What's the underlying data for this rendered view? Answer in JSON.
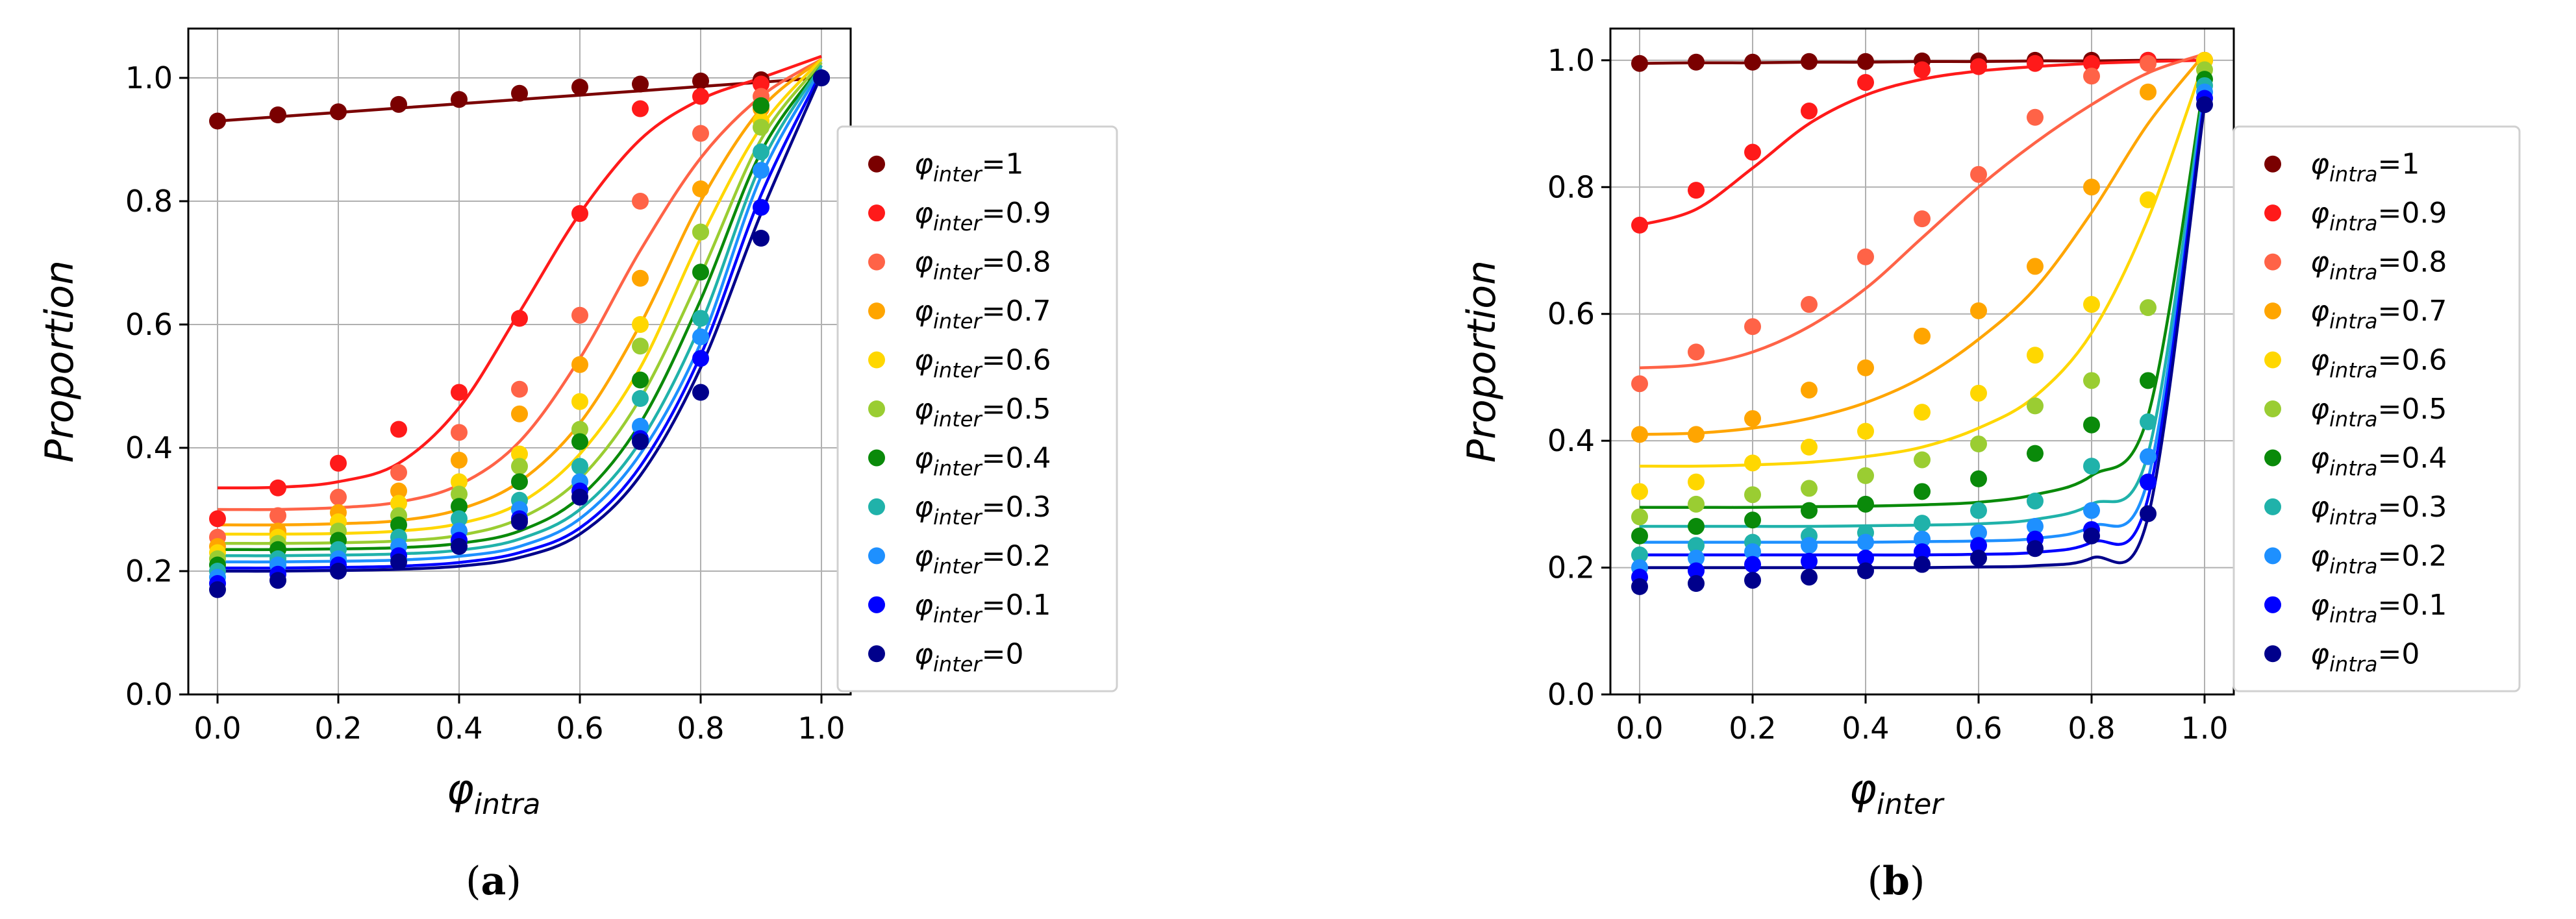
{
  "chart_data": [
    {
      "type": "scatter",
      "panel_label": "a",
      "ylabel": "Proportion",
      "xlabel": {
        "symbol": "φ",
        "subscript": "intra"
      },
      "legend_symbol": {
        "symbol": "φ",
        "subscript": "inter"
      },
      "xlim": [
        0,
        1
      ],
      "ylim": [
        0,
        1.08
      ],
      "xticks": [
        "0.0",
        "0.2",
        "0.4",
        "0.6",
        "0.8",
        "1.0"
      ],
      "yticks": [
        "0.0",
        "0.2",
        "0.4",
        "0.6",
        "0.8",
        "1.0"
      ],
      "grid": true,
      "legend_location": "right, outside axes",
      "x": [
        0,
        0.1,
        0.2,
        0.3,
        0.4,
        0.5,
        0.6,
        0.7,
        0.8,
        0.9,
        1.0
      ],
      "series": [
        {
          "name": "1",
          "color": "#7a0000",
          "points": [
            0.93,
            0.94,
            0.945,
            0.957,
            0.965,
            0.975,
            0.985,
            0.99,
            0.995,
            0.997,
            1.0
          ],
          "fit": [
            0.93,
            0.937,
            0.944,
            0.951,
            0.958,
            0.965,
            0.972,
            0.979,
            0.986,
            0.993,
            1.0
          ]
        },
        {
          "name": "0.9",
          "color": "#ff1a1a",
          "points": [
            0.285,
            0.335,
            0.375,
            0.43,
            0.49,
            0.61,
            0.78,
            0.95,
            0.97,
            0.99,
            1.0
          ],
          "fit": [
            0.335,
            0.336,
            0.345,
            0.375,
            0.465,
            0.62,
            0.78,
            0.9,
            0.965,
            1.0,
            1.035
          ]
        },
        {
          "name": "0.8",
          "color": "#ff6347",
          "points": [
            0.255,
            0.29,
            0.32,
            0.36,
            0.425,
            0.495,
            0.615,
            0.8,
            0.91,
            0.97,
            1.0
          ],
          "fit": [
            0.3,
            0.3,
            0.303,
            0.312,
            0.34,
            0.41,
            0.545,
            0.72,
            0.87,
            0.97,
            1.03
          ]
        },
        {
          "name": "0.7",
          "color": "#ffa500",
          "points": [
            0.24,
            0.265,
            0.295,
            0.33,
            0.38,
            0.455,
            0.535,
            0.675,
            0.82,
            0.95,
            1.0
          ],
          "fit": [
            0.275,
            0.275,
            0.277,
            0.282,
            0.3,
            0.345,
            0.44,
            0.6,
            0.8,
            0.95,
            1.03
          ]
        },
        {
          "name": "0.6",
          "color": "#ffd700",
          "points": [
            0.23,
            0.255,
            0.28,
            0.31,
            0.345,
            0.39,
            0.475,
            0.6,
            0.75,
            0.93,
            1.0
          ],
          "fit": [
            0.26,
            0.26,
            0.261,
            0.265,
            0.277,
            0.31,
            0.39,
            0.53,
            0.74,
            0.92,
            1.03
          ]
        },
        {
          "name": "0.5",
          "color": "#9acd32",
          "points": [
            0.22,
            0.245,
            0.265,
            0.29,
            0.325,
            0.37,
            0.43,
            0.565,
            0.75,
            0.92,
            1.0
          ],
          "fit": [
            0.245,
            0.245,
            0.246,
            0.249,
            0.258,
            0.285,
            0.35,
            0.48,
            0.68,
            0.9,
            1.025
          ]
        },
        {
          "name": "0.4",
          "color": "#0a8a0a",
          "points": [
            0.21,
            0.235,
            0.25,
            0.275,
            0.305,
            0.345,
            0.41,
            0.51,
            0.685,
            0.955,
            1.0
          ],
          "fit": [
            0.235,
            0.235,
            0.236,
            0.238,
            0.245,
            0.265,
            0.32,
            0.44,
            0.64,
            0.88,
            1.02
          ]
        },
        {
          "name": "0.3",
          "color": "#20b2aa",
          "points": [
            0.2,
            0.22,
            0.235,
            0.255,
            0.285,
            0.315,
            0.37,
            0.48,
            0.61,
            0.88,
            1.0
          ],
          "fit": [
            0.225,
            0.225,
            0.226,
            0.228,
            0.234,
            0.252,
            0.3,
            0.41,
            0.6,
            0.86,
            1.02
          ]
        },
        {
          "name": "0.2",
          "color": "#1e90ff",
          "points": [
            0.19,
            0.21,
            0.22,
            0.24,
            0.265,
            0.3,
            0.345,
            0.435,
            0.58,
            0.85,
            1.0
          ],
          "fit": [
            0.215,
            0.215,
            0.216,
            0.218,
            0.224,
            0.24,
            0.285,
            0.39,
            0.57,
            0.84,
            1.015
          ]
        },
        {
          "name": "0.1",
          "color": "#0000ff",
          "points": [
            0.18,
            0.195,
            0.21,
            0.225,
            0.25,
            0.285,
            0.33,
            0.415,
            0.545,
            0.79,
            1.0
          ],
          "fit": [
            0.205,
            0.205,
            0.206,
            0.208,
            0.214,
            0.23,
            0.27,
            0.37,
            0.55,
            0.81,
            1.01
          ]
        },
        {
          "name": "0",
          "color": "#00008b",
          "points": [
            0.17,
            0.185,
            0.2,
            0.215,
            0.24,
            0.28,
            0.32,
            0.41,
            0.49,
            0.74,
            1.0
          ],
          "fit": [
            0.2,
            0.2,
            0.201,
            0.203,
            0.208,
            0.222,
            0.26,
            0.355,
            0.53,
            0.78,
            1.005
          ]
        }
      ]
    },
    {
      "type": "scatter",
      "panel_label": "b",
      "ylabel": "Proportion",
      "xlabel": {
        "symbol": "φ",
        "subscript": "inter"
      },
      "legend_symbol": {
        "symbol": "φ",
        "subscript": "intra"
      },
      "xlim": [
        0,
        1
      ],
      "ylim": [
        0,
        1.05
      ],
      "xticks": [
        "0.0",
        "0.2",
        "0.4",
        "0.6",
        "0.8",
        "1.0"
      ],
      "yticks": [
        "0.0",
        "0.2",
        "0.4",
        "0.6",
        "0.8",
        "1.0"
      ],
      "grid": true,
      "legend_location": "right, outside axes",
      "x": [
        0,
        0.1,
        0.2,
        0.3,
        0.4,
        0.5,
        0.6,
        0.7,
        0.8,
        0.9,
        1.0
      ],
      "series": [
        {
          "name": "1",
          "color": "#7a0000",
          "points": [
            0.995,
            0.997,
            0.997,
            0.998,
            0.998,
            0.999,
            0.999,
            1.0,
            1.0,
            1.0,
            1.0
          ],
          "fit": [
            0.995,
            0.996,
            0.996,
            0.997,
            0.997,
            0.998,
            0.998,
            0.999,
            0.999,
            1.0,
            1.0
          ]
        },
        {
          "name": "0.9",
          "color": "#ff1a1a",
          "points": [
            0.74,
            0.795,
            0.855,
            0.92,
            0.965,
            0.985,
            0.99,
            0.995,
            0.995,
            1.0,
            1.0
          ],
          "fit": [
            0.74,
            0.765,
            0.83,
            0.9,
            0.945,
            0.97,
            0.983,
            0.99,
            0.995,
            0.998,
            1.0
          ]
        },
        {
          "name": "0.8",
          "color": "#ff6347",
          "points": [
            0.49,
            0.54,
            0.58,
            0.615,
            0.69,
            0.75,
            0.82,
            0.91,
            0.975,
            0.995,
            1.0
          ],
          "fit": [
            0.515,
            0.52,
            0.54,
            0.58,
            0.64,
            0.72,
            0.8,
            0.87,
            0.93,
            0.98,
            1.01
          ]
        },
        {
          "name": "0.7",
          "color": "#ffa500",
          "points": [
            0.41,
            0.41,
            0.435,
            0.48,
            0.515,
            0.565,
            0.605,
            0.675,
            0.8,
            0.95,
            1.0
          ],
          "fit": [
            0.41,
            0.412,
            0.42,
            0.435,
            0.46,
            0.5,
            0.56,
            0.64,
            0.76,
            0.9,
            1.01
          ]
        },
        {
          "name": "0.6",
          "color": "#ffd700",
          "points": [
            0.32,
            0.335,
            0.365,
            0.39,
            0.415,
            0.445,
            0.475,
            0.535,
            0.615,
            0.78,
            1.0
          ],
          "fit": [
            0.36,
            0.36,
            0.362,
            0.366,
            0.375,
            0.39,
            0.42,
            0.47,
            0.57,
            0.75,
            1.0
          ]
        },
        {
          "name": "0.5",
          "color": "#9acd32",
          "points": [
            0.28,
            0.3,
            0.315,
            0.325,
            0.345,
            0.37,
            0.395,
            0.455,
            0.495,
            0.61,
            0.985
          ]
        },
        {
          "name": "0.4",
          "color": "#0a8a0a",
          "points": [
            0.25,
            0.265,
            0.275,
            0.29,
            0.3,
            0.32,
            0.34,
            0.38,
            0.425,
            0.495,
            0.97
          ],
          "fit": [
            0.295,
            0.295,
            0.295,
            0.296,
            0.297,
            0.299,
            0.303,
            0.315,
            0.345,
            0.44,
            0.97
          ]
        },
        {
          "name": "0.3",
          "color": "#20b2aa",
          "points": [
            0.22,
            0.235,
            0.24,
            0.25,
            0.255,
            0.27,
            0.29,
            0.305,
            0.36,
            0.43,
            0.96
          ],
          "fit": [
            0.265,
            0.265,
            0.265,
            0.265,
            0.266,
            0.267,
            0.269,
            0.276,
            0.3,
            0.38,
            0.96
          ]
        },
        {
          "name": "0.2",
          "color": "#1e90ff",
          "points": [
            0.2,
            0.215,
            0.225,
            0.235,
            0.24,
            0.245,
            0.255,
            0.265,
            0.29,
            0.375,
            0.95
          ],
          "fit": [
            0.24,
            0.24,
            0.24,
            0.24,
            0.24,
            0.241,
            0.242,
            0.246,
            0.265,
            0.34,
            0.95
          ]
        },
        {
          "name": "0.1",
          "color": "#0000ff",
          "points": [
            0.185,
            0.195,
            0.205,
            0.21,
            0.215,
            0.225,
            0.235,
            0.245,
            0.26,
            0.335,
            0.94
          ],
          "fit": [
            0.22,
            0.22,
            0.22,
            0.22,
            0.22,
            0.22,
            0.221,
            0.224,
            0.24,
            0.31,
            0.94
          ]
        },
        {
          "name": "0",
          "color": "#00008b",
          "points": [
            0.17,
            0.175,
            0.18,
            0.185,
            0.195,
            0.205,
            0.215,
            0.23,
            0.25,
            0.285,
            0.93
          ],
          "fit": [
            0.2,
            0.2,
            0.2,
            0.2,
            0.2,
            0.2,
            0.201,
            0.203,
            0.215,
            0.28,
            0.93
          ]
        }
      ]
    }
  ]
}
